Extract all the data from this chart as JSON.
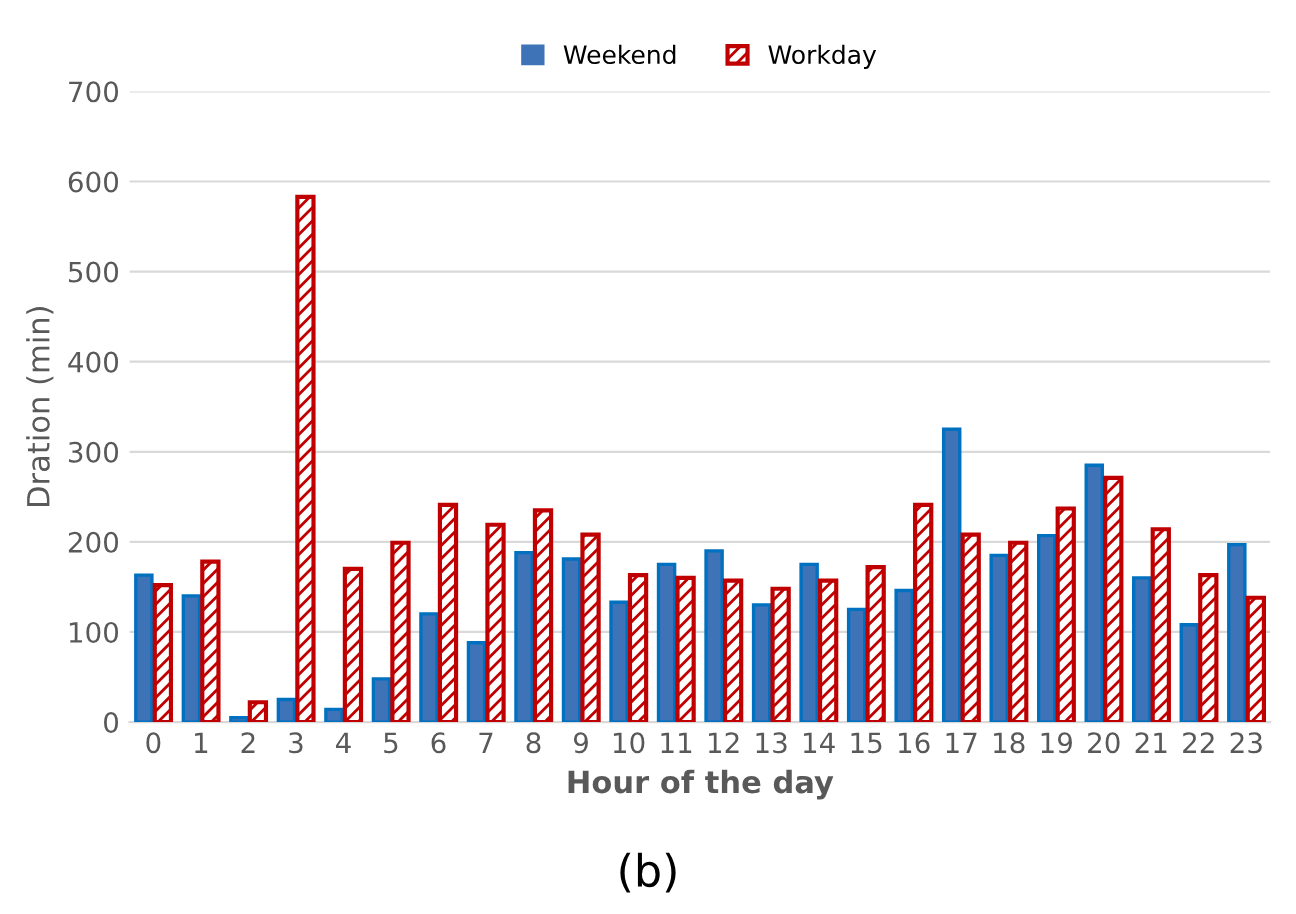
{
  "chart_data": {
    "type": "bar",
    "xlabel": "Hour of the day",
    "ylabel": "Dration (min)",
    "categories": [
      "0",
      "1",
      "2",
      "3",
      "4",
      "5",
      "6",
      "7",
      "8",
      "9",
      "10",
      "11",
      "12",
      "13",
      "14",
      "15",
      "16",
      "17",
      "18",
      "19",
      "20",
      "21",
      "22",
      "23"
    ],
    "series": [
      {
        "name": "Weekend",
        "color": "#3f73b8",
        "values": [
          163,
          140,
          5,
          25,
          14,
          48,
          120,
          88,
          188,
          181,
          133,
          175,
          190,
          130,
          175,
          125,
          146,
          325,
          185,
          207,
          285,
          160,
          108,
          197
        ]
      },
      {
        "name": "Workday",
        "color": "#c00000",
        "values": [
          152,
          178,
          22,
          583,
          170,
          199,
          241,
          219,
          235,
          208,
          163,
          160,
          157,
          148,
          157,
          172,
          241,
          208,
          199,
          237,
          271,
          214,
          163,
          138
        ]
      }
    ],
    "ylim": [
      0,
      700
    ],
    "yticks": [
      0,
      100,
      200,
      300,
      400,
      500,
      600,
      700
    ],
    "grid": "y",
    "legend": "top",
    "annotations": [
      "(b)"
    ]
  }
}
